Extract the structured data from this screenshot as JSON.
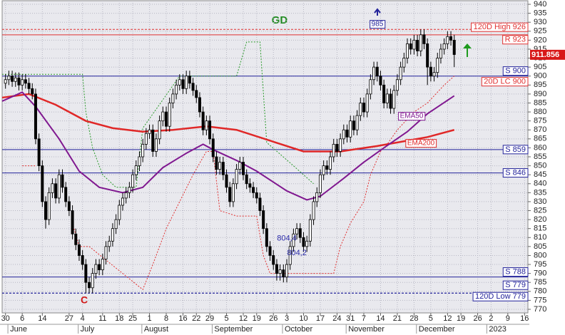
{
  "chart_data": {
    "type": "candlestick",
    "title": "GD",
    "x": [
      1,
      2,
      3,
      4,
      5,
      6,
      7,
      8,
      9,
      10,
      11,
      12,
      13,
      14,
      15,
      16,
      17,
      18,
      19,
      20,
      21,
      22,
      23,
      24,
      25,
      26,
      27,
      28,
      29,
      30,
      31,
      32,
      33,
      34,
      35,
      36,
      37,
      38,
      39,
      40,
      41,
      42,
      43,
      44,
      45,
      46,
      47,
      48,
      49,
      50,
      51,
      52,
      53,
      54,
      55,
      56,
      57,
      58,
      59,
      60,
      61,
      62,
      63,
      64,
      65,
      66,
      67,
      68,
      69,
      70,
      71,
      72,
      73,
      74,
      75,
      76,
      77,
      78,
      79,
      80,
      81,
      82,
      83,
      84,
      85,
      86,
      87,
      88,
      89,
      90,
      91,
      92,
      93,
      94,
      95,
      96,
      97,
      98,
      99,
      100,
      101,
      102,
      103,
      104,
      105,
      106,
      107,
      108,
      109,
      110,
      111,
      112,
      113,
      114,
      115,
      116,
      117,
      118,
      119,
      120,
      121,
      122,
      123,
      124,
      125,
      126,
      127,
      128,
      129,
      130,
      131,
      132,
      133,
      134,
      135
    ],
    "open": [
      896,
      898,
      900,
      897,
      899,
      895,
      898,
      896,
      893,
      890,
      865,
      850,
      830,
      820,
      835,
      840,
      832,
      845,
      838,
      830,
      825,
      812,
      806,
      800,
      795,
      785,
      782,
      790,
      795,
      792,
      798,
      805,
      808,
      815,
      820,
      828,
      832,
      835,
      838,
      845,
      850,
      855,
      862,
      868,
      870,
      858,
      865,
      875,
      880,
      872,
      885,
      890,
      895,
      898,
      893,
      900,
      896,
      892,
      888,
      880,
      870,
      875,
      865,
      855,
      848,
      852,
      845,
      838,
      830,
      840,
      848,
      852,
      845,
      840,
      838,
      835,
      832,
      825,
      815,
      805,
      800,
      795,
      790,
      792,
      788,
      795,
      805,
      812,
      815,
      810,
      805,
      808,
      820,
      830,
      835,
      845,
      850,
      848,
      855,
      862,
      858,
      865,
      870,
      866,
      875,
      870,
      878,
      885,
      880,
      890,
      898,
      905,
      900,
      895,
      885,
      890,
      882,
      892,
      898,
      905,
      910,
      918,
      915,
      920,
      914,
      923,
      918,
      905,
      900,
      902,
      910,
      915,
      918,
      922,
      920
    ],
    "high": [
      901,
      903,
      903,
      902,
      902,
      901,
      901,
      899,
      896,
      893,
      868,
      853,
      833,
      838,
      843,
      843,
      848,
      848,
      841,
      833,
      828,
      815,
      809,
      803,
      798,
      788,
      793,
      798,
      798,
      801,
      808,
      811,
      818,
      823,
      831,
      835,
      838,
      841,
      848,
      853,
      858,
      865,
      871,
      873,
      873,
      868,
      878,
      883,
      883,
      888,
      893,
      898,
      901,
      901,
      903,
      903,
      899,
      895,
      891,
      883,
      878,
      878,
      868,
      858,
      855,
      855,
      848,
      841,
      843,
      851,
      855,
      855,
      848,
      843,
      841,
      838,
      835,
      828,
      818,
      808,
      803,
      798,
      795,
      795,
      798,
      808,
      815,
      818,
      818,
      813,
      811,
      823,
      833,
      838,
      848,
      853,
      853,
      858,
      865,
      865,
      868,
      873,
      873,
      878,
      878,
      881,
      888,
      888,
      893,
      901,
      908,
      908,
      903,
      898,
      893,
      893,
      895,
      901,
      908,
      913,
      921,
      921,
      923,
      923,
      926,
      926,
      921,
      908,
      905,
      913,
      918,
      921,
      925,
      925,
      923
    ],
    "low": [
      893,
      895,
      894,
      894,
      892,
      892,
      893,
      890,
      887,
      862,
      847,
      827,
      815,
      817,
      832,
      829,
      829,
      835,
      827,
      822,
      809,
      803,
      797,
      792,
      779,
      779,
      779,
      787,
      789,
      789,
      795,
      802,
      805,
      812,
      817,
      825,
      829,
      832,
      835,
      842,
      847,
      852,
      859,
      865,
      855,
      855,
      862,
      872,
      869,
      869,
      882,
      887,
      892,
      890,
      890,
      893,
      889,
      885,
      877,
      867,
      867,
      862,
      852,
      845,
      845,
      842,
      835,
      827,
      827,
      837,
      845,
      842,
      837,
      835,
      832,
      829,
      822,
      812,
      802,
      797,
      792,
      786,
      786,
      785,
      785,
      792,
      802,
      809,
      807,
      802,
      802,
      805,
      817,
      827,
      832,
      842,
      845,
      845,
      852,
      855,
      855,
      862,
      863,
      863,
      867,
      867,
      875,
      877,
      877,
      887,
      895,
      897,
      892,
      882,
      882,
      879,
      879,
      889,
      895,
      902,
      907,
      912,
      912,
      911,
      911,
      915,
      895,
      897,
      897,
      899,
      907,
      912,
      915,
      917,
      905
    ],
    "close": [
      898,
      900,
      897,
      899,
      895,
      898,
      896,
      893,
      890,
      865,
      850,
      830,
      820,
      835,
      840,
      832,
      845,
      838,
      830,
      825,
      812,
      806,
      800,
      795,
      785,
      782,
      790,
      795,
      792,
      798,
      805,
      808,
      815,
      820,
      828,
      832,
      835,
      838,
      845,
      850,
      855,
      862,
      868,
      870,
      858,
      865,
      875,
      880,
      872,
      885,
      890,
      895,
      898,
      893,
      900,
      896,
      892,
      888,
      880,
      870,
      875,
      865,
      855,
      848,
      852,
      845,
      838,
      830,
      840,
      848,
      852,
      845,
      840,
      838,
      835,
      832,
      825,
      815,
      805,
      800,
      795,
      790,
      792,
      788,
      795,
      805,
      812,
      815,
      810,
      805,
      808,
      820,
      830,
      835,
      845,
      850,
      848,
      855,
      862,
      858,
      865,
      870,
      866,
      875,
      870,
      878,
      885,
      880,
      890,
      898,
      905,
      900,
      895,
      885,
      890,
      882,
      892,
      898,
      905,
      910,
      918,
      915,
      920,
      914,
      923,
      918,
      905,
      900,
      902,
      910,
      915,
      918,
      922,
      920,
      912
    ],
    "up_color": "#ffffff",
    "down_color": "#000000",
    "xlim": [
      0,
      157
    ],
    "xticks": [
      {
        "value": 1,
        "label": "30"
      },
      {
        "value": 6,
        "label": "6"
      },
      {
        "value": 12,
        "label": "14"
      },
      {
        "value": 20,
        "label": "27"
      },
      {
        "value": 24,
        "label": "4"
      },
      {
        "value": 30,
        "label": "11"
      },
      {
        "value": 35,
        "label": "18"
      },
      {
        "value": 39,
        "label": "25"
      },
      {
        "value": 44,
        "label": "1"
      },
      {
        "value": 49,
        "label": "8"
      },
      {
        "value": 54,
        "label": "16"
      },
      {
        "value": 58,
        "label": "22"
      },
      {
        "value": 62,
        "label": "29"
      },
      {
        "value": 67,
        "label": "5"
      },
      {
        "value": 72,
        "label": "12"
      },
      {
        "value": 76,
        "label": "19"
      },
      {
        "value": 81,
        "label": "26"
      },
      {
        "value": 85,
        "label": "3"
      },
      {
        "value": 90,
        "label": "10"
      },
      {
        "value": 95,
        "label": "17"
      },
      {
        "value": 100,
        "label": "24"
      },
      {
        "value": 104,
        "label": "31"
      },
      {
        "value": 108,
        "label": "7"
      },
      {
        "value": 113,
        "label": "14"
      },
      {
        "value": 118,
        "label": "21"
      },
      {
        "value": 123,
        "label": "28"
      },
      {
        "value": 128,
        "label": "5"
      },
      {
        "value": 133,
        "label": "12"
      },
      {
        "value": 137,
        "label": "19"
      },
      {
        "value": 142,
        "label": "26"
      },
      {
        "value": 146,
        "label": "2"
      },
      {
        "value": 151,
        "label": "9"
      },
      {
        "value": 156,
        "label": "16"
      }
    ],
    "month_labels": [
      {
        "value": 3,
        "label": "June"
      },
      {
        "value": 24,
        "label": "July"
      },
      {
        "value": 43,
        "label": "August"
      },
      {
        "value": 64,
        "label": "September"
      },
      {
        "value": 85,
        "label": "October"
      },
      {
        "value": 104,
        "label": "November"
      },
      {
        "value": 125,
        "label": "December"
      },
      {
        "value": 146,
        "label": "2023"
      }
    ],
    "ylim": [
      768,
      942
    ],
    "yticks": [
      770,
      775,
      780,
      785,
      790,
      795,
      800,
      805,
      810,
      815,
      820,
      825,
      830,
      835,
      840,
      845,
      850,
      855,
      860,
      865,
      870,
      875,
      880,
      885,
      890,
      895,
      900,
      905,
      910,
      915,
      920,
      925,
      930,
      935,
      940
    ],
    "grid": true,
    "overlays": [
      {
        "name": "EMA200",
        "color": "#e02828",
        "x": [
          0,
          8,
          16,
          25,
          33,
          42,
          51,
          61,
          70,
          80,
          90,
          101,
          112,
          118,
          127,
          135
        ],
        "values": [
          888,
          890,
          884,
          875,
          871,
          869,
          870,
          872,
          870,
          864,
          858,
          858,
          861,
          863,
          866,
          870
        ]
      },
      {
        "name": "EMA50",
        "color": "#801890",
        "x": [
          0,
          6,
          10,
          17,
          23,
          29,
          36,
          42,
          48,
          55,
          60,
          63,
          70,
          76,
          85,
          91,
          95,
          102,
          108,
          114,
          121,
          127,
          135
        ],
        "values": [
          886,
          891,
          883,
          865,
          847,
          838,
          835,
          838,
          849,
          857,
          862,
          859,
          853,
          847,
          836,
          831,
          833,
          843,
          852,
          860,
          869,
          879,
          889
        ]
      }
    ],
    "stops": [
      {
        "color": "#2a9a2a",
        "x": [
          0,
          24,
          25,
          27,
          30,
          34,
          40,
          42,
          53,
          70,
          73,
          77,
          79,
          87,
          93
        ],
        "values": [
          901,
          901,
          880,
          860,
          845,
          838,
          838,
          871,
          900,
          900,
          919,
          919,
          863,
          850,
          840
        ]
      },
      {
        "color": "#e03030",
        "x": [
          6,
          10,
          11,
          21,
          23,
          26,
          42,
          45,
          49,
          53,
          57,
          61,
          63,
          65,
          70,
          76,
          78,
          80,
          99,
          101,
          104,
          108,
          110,
          113,
          115,
          118,
          123,
          127,
          132,
          135
        ],
        "values": [
          850,
          850,
          null,
          818,
          805,
          805,
          781,
          795,
          815,
          830,
          845,
          858,
          858,
          825,
          822,
          822,
          800,
          790,
          790,
          805,
          818,
          830,
          845,
          858,
          862,
          870,
          880,
          885,
          895,
          900
        ]
      }
    ],
    "levels": [
      {
        "label": "120D High 926",
        "value": 926,
        "color": "#e03030",
        "dash": true
      },
      {
        "label": "R 923",
        "value": 923,
        "color": "#e03030",
        "dash": false
      },
      {
        "label": "S 900",
        "value": 900,
        "color": "#22229a",
        "dash": false
      },
      {
        "label": "S 859",
        "value": 859,
        "color": "#22229a",
        "dash": false
      },
      {
        "label": "S 846",
        "value": 846,
        "color": "#22229a",
        "dash": false
      },
      {
        "label": "S 788",
        "value": 788,
        "color": "#22229a",
        "dash": false
      },
      {
        "label": "S 779",
        "value": 779,
        "color": "#22229a",
        "dash": true
      },
      {
        "label": "120D Low 779",
        "value": 779,
        "color": "#22229a",
        "dash": true
      }
    ],
    "price_tag": {
      "value": 911.856,
      "label": "911.856"
    },
    "low_marker": "C",
    "offscale_high": 985,
    "lc_label": "20D LC 900",
    "lows": [
      {
        "value": 804.4,
        "label": "804,4",
        "x": 85
      },
      {
        "value": 804.2,
        "label": "804,2",
        "x": 88
      }
    ]
  }
}
